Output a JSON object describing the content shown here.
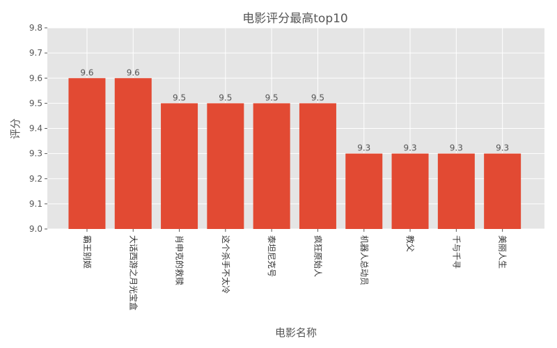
{
  "chart_data": {
    "type": "bar",
    "title": "电影评分最高top10",
    "xlabel": "电影名称",
    "ylabel": "评分",
    "categories": [
      "霸王别姬",
      "大话西游之月光宝盒",
      "肖申克的救赎",
      "这个杀手不太冷",
      "泰坦尼克号",
      "疯狂原始人",
      "机器人总动员",
      "教父",
      "千与千寻",
      "美丽人生"
    ],
    "values": [
      9.6,
      9.6,
      9.5,
      9.5,
      9.5,
      9.5,
      9.3,
      9.3,
      9.3,
      9.3
    ],
    "data_labels": [
      "9.6",
      "9.6",
      "9.5",
      "9.5",
      "9.5",
      "9.5",
      "9.3",
      "9.3",
      "9.3",
      "9.3"
    ],
    "ylim": [
      9.0,
      9.8
    ],
    "yticks": [
      "9.0",
      "9.1",
      "9.2",
      "9.3",
      "9.4",
      "9.5",
      "9.6",
      "9.7",
      "9.8"
    ],
    "grid": true,
    "bar_color": "#e24a33",
    "plot_bg": "#e5e5e5",
    "grid_color": "#ffffff"
  }
}
